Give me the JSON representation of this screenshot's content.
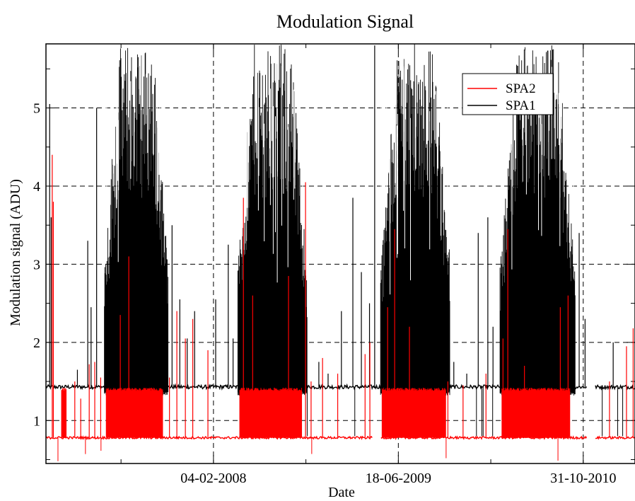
{
  "chart_data": {
    "type": "line",
    "title": "Modulation Signal",
    "xlabel": "Date",
    "ylabel": "Modulation signal (ADU)",
    "xlim": [
      "2006-11-08",
      "2011-03-20"
    ],
    "ylim": [
      0.45,
      5.82
    ],
    "x_ticks": [
      "2008-02-04",
      "2009-06-18",
      "2010-10-31"
    ],
    "x_tick_labels": [
      "04-02-2008",
      "18-06-2009",
      "31-10-2010"
    ],
    "y_ticks": [
      1,
      2,
      3,
      4,
      5
    ],
    "y_tick_labels": [
      "1",
      "2",
      "3",
      "4",
      "5"
    ],
    "grid": true,
    "legend_position": "top-right",
    "series": [
      {
        "name": "SPA2",
        "color": "#ff0000",
        "base": 0.78,
        "active_level": 1.42,
        "gaps": [
          [
            "2009-04-10",
            "2009-04-30"
          ],
          [
            "2010-11-10",
            "2010-12-01"
          ]
        ],
        "active_periods": [
          [
            "2006-12-20",
            "2007-01-02"
          ],
          [
            "2007-04-20",
            "2007-09-20"
          ],
          [
            "2008-04-15",
            "2008-09-30"
          ],
          [
            "2009-05-05",
            "2009-10-25"
          ],
          [
            "2010-03-25",
            "2010-09-25"
          ]
        ],
        "spikes": [
          [
            "2006-11-25",
            4.4
          ],
          [
            "2006-11-28",
            3.8
          ],
          [
            "2007-01-25",
            1.5
          ],
          [
            "2007-02-10",
            1.28
          ],
          [
            "2007-03-05",
            1.72
          ],
          [
            "2007-03-20",
            1.75
          ],
          [
            "2007-04-05",
            1.55
          ],
          [
            "2007-05-28",
            2.35
          ],
          [
            "2007-06-20",
            3.1
          ],
          [
            "2007-10-08",
            1.55
          ],
          [
            "2007-10-28",
            2.4
          ],
          [
            "2007-11-20",
            2.05
          ],
          [
            "2007-12-10",
            2.3
          ],
          [
            "2008-01-20",
            1.9
          ],
          [
            "2008-04-25",
            3.85
          ],
          [
            "2008-05-20",
            2.6
          ],
          [
            "2008-08-25",
            2.85
          ],
          [
            "2008-10-10",
            4.05
          ],
          [
            "2008-10-25",
            1.5
          ],
          [
            "2008-11-25",
            1.8
          ],
          [
            "2009-01-05",
            1.6
          ],
          [
            "2009-03-20",
            1.85
          ],
          [
            "2009-04-02",
            2.0
          ],
          [
            "2009-05-20",
            2.45
          ],
          [
            "2009-06-08",
            3.45
          ],
          [
            "2009-07-18",
            2.2
          ],
          [
            "2009-10-30",
            1.5
          ],
          [
            "2009-12-10",
            1.45
          ],
          [
            "2010-02-10",
            1.6
          ],
          [
            "2010-03-28",
            2.05
          ],
          [
            "2010-04-10",
            3.45
          ],
          [
            "2010-05-25",
            1.7
          ],
          [
            "2010-08-30",
            2.45
          ],
          [
            "2010-09-20",
            2.6
          ],
          [
            "2011-01-10",
            1.5
          ],
          [
            "2011-02-25",
            1.95
          ],
          [
            "2011-03-15",
            2.18
          ]
        ]
      },
      {
        "name": "SPA1",
        "color": "#000000",
        "base": 1.43,
        "dip": 0.8,
        "gaps": [
          [
            "2010-11-10",
            "2010-12-01"
          ]
        ],
        "active_periods": [
          [
            "2007-04-15",
            "2007-10-05"
          ],
          [
            "2008-04-10",
            "2008-10-15"
          ],
          [
            "2009-05-01",
            "2009-11-05"
          ],
          [
            "2010-03-20",
            "2010-10-10"
          ]
        ],
        "active_peak": 5.82,
        "spikes": [
          [
            "2006-11-18",
            5.05
          ],
          [
            "2006-11-22",
            3.6
          ],
          [
            "2007-02-01",
            1.65
          ],
          [
            "2007-03-01",
            3.3
          ],
          [
            "2007-03-10",
            2.45
          ],
          [
            "2007-03-25",
            5.0
          ],
          [
            "2007-10-15",
            3.5
          ],
          [
            "2007-11-05",
            2.55
          ],
          [
            "2007-11-25",
            2.05
          ],
          [
            "2007-12-15",
            2.4
          ],
          [
            "2008-02-10",
            2.55
          ],
          [
            "2008-03-15",
            3.25
          ],
          [
            "2008-03-28",
            2.05
          ],
          [
            "2008-11-15",
            1.75
          ],
          [
            "2008-12-10",
            1.6
          ],
          [
            "2009-01-15",
            2.4
          ],
          [
            "2009-02-15",
            3.85
          ],
          [
            "2009-03-10",
            2.9
          ],
          [
            "2009-04-01",
            2.5
          ],
          [
            "2009-04-15",
            5.8
          ],
          [
            "2009-11-15",
            1.75
          ],
          [
            "2009-12-20",
            1.6
          ],
          [
            "2010-01-20",
            3.4
          ],
          [
            "2010-02-15",
            3.6
          ],
          [
            "2010-03-01",
            2.2
          ],
          [
            "2010-10-20",
            3.4
          ],
          [
            "2010-11-05",
            2.3
          ],
          [
            "2011-01-20",
            2.0
          ]
        ]
      }
    ]
  }
}
